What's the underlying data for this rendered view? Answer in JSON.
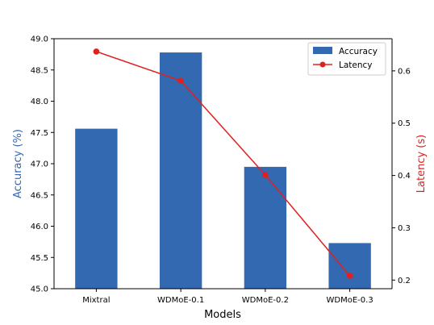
{
  "chart_data": {
    "type": "bar+line",
    "categories": [
      "Mixtral",
      "WDMoE-0.1",
      "WDMoE-0.2",
      "WDMoE-0.3"
    ],
    "xlabel": "Models",
    "series": [
      {
        "name": "Accuracy",
        "kind": "bar",
        "axis": "left",
        "color": "#3369b0",
        "values": [
          47.56,
          48.78,
          46.95,
          45.73
        ]
      },
      {
        "name": "Latency",
        "kind": "line",
        "axis": "right",
        "color": "#e02020",
        "values": [
          0.637,
          0.581,
          0.401,
          0.208
        ]
      }
    ],
    "y_left": {
      "label": "Accuracy (%)",
      "color": "#3369b0",
      "lim": [
        45.0,
        49.0
      ],
      "ticks": [
        "45.0",
        "45.5",
        "46.0",
        "46.5",
        "47.0",
        "47.5",
        "48.0",
        "48.5",
        "49.0"
      ]
    },
    "y_right": {
      "label": "Latency (s)",
      "color": "#e02020",
      "lim": [
        0.1835,
        0.6615
      ],
      "ticks": [
        "0.2",
        "0.3",
        "0.4",
        "0.5",
        "0.6"
      ]
    },
    "legend": {
      "placement": "top-right",
      "entries": [
        "Accuracy",
        "Latency"
      ]
    },
    "grid": false
  }
}
